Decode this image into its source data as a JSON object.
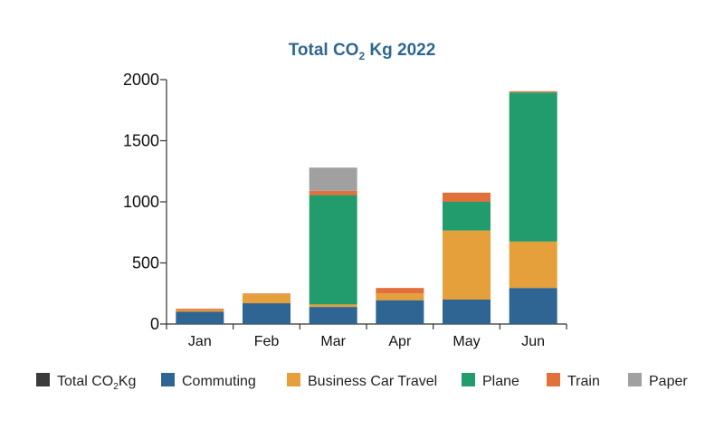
{
  "chart_data": {
    "type": "bar",
    "stacked": true,
    "title": {
      "main": "Total CO",
      "subscript": "2",
      "tail": " Kg  2022"
    },
    "categories": [
      "Jan",
      "Feb",
      "Mar",
      "Apr",
      "May",
      "Jun"
    ],
    "ylim": [
      0,
      2000
    ],
    "yticks": [
      "0",
      "500",
      "1000",
      "1500",
      "2000"
    ],
    "xlabel": "",
    "ylabel": "",
    "grid": false,
    "legend_position": "bottom",
    "legend": [
      {
        "main": "Total CO",
        "subscript": "2",
        "tail": "Kg",
        "color": "#3b3b3b"
      },
      {
        "main": "Commuting",
        "color": "#2e6593"
      },
      {
        "main": "Business Car Travel",
        "color": "#e59f3b"
      },
      {
        "main": "Plane",
        "color": "#229c6c"
      },
      {
        "main": "Train",
        "color": "#e1703a"
      },
      {
        "main": "Paper",
        "color": "#a0a0a0"
      }
    ],
    "series": [
      {
        "name": "Commuting",
        "color": "#2e6593",
        "values": [
          100,
          170,
          140,
          195,
          200,
          295
        ]
      },
      {
        "name": "Business Car Travel",
        "color": "#e59f3b",
        "values": [
          15,
          75,
          20,
          55,
          565,
          380
        ]
      },
      {
        "name": "Plane",
        "color": "#229c6c",
        "values": [
          0,
          0,
          895,
          0,
          235,
          1220
        ]
      },
      {
        "name": "Train",
        "color": "#e1703a",
        "values": [
          10,
          5,
          35,
          45,
          75,
          10
        ]
      },
      {
        "name": "Paper",
        "color": "#a0a0a0",
        "values": [
          0,
          0,
          190,
          0,
          0,
          0
        ]
      }
    ]
  }
}
